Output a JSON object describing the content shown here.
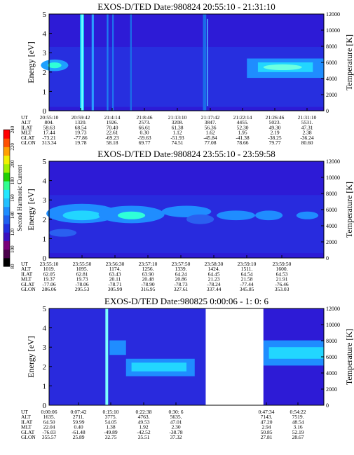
{
  "chart_data": [
    {
      "type": "heatmap",
      "title": "EXOS-D/TED   Date:980824  20:55:10 - 21:31:10",
      "ylabel": "Energy [eV]",
      "y2label": "Temperature [K]",
      "ylim": [
        0,
        5
      ],
      "y2lim": [
        0,
        12000
      ],
      "y_ticks": [
        "0",
        "1",
        "2",
        "3",
        "4",
        "5"
      ],
      "y2_ticks": [
        "0",
        "2000",
        "4000",
        "6000",
        "8000",
        "10000",
        "12000"
      ],
      "row_labels": [
        "UT",
        "ALT",
        "ILAT",
        "MLT",
        "GLAT",
        "GLON"
      ],
      "columns": [
        [
          "20:55:10",
          "804.",
          "58.63",
          "17.44",
          "-73.21",
          "313.34"
        ],
        [
          "20:59:42",
          "1320.",
          "68.54",
          "19.73",
          "-77.86",
          "19.78"
        ],
        [
          "21:4:14",
          "1926.",
          "70.40",
          "22.61",
          "-69.23",
          "58.18"
        ],
        [
          "21:8:46",
          "2573.",
          "66.61",
          "0.30",
          "-59.63",
          "69.77"
        ],
        [
          "21:13:10",
          "3208.",
          "61.38",
          "1.12",
          "-51.93",
          "74.51"
        ],
        [
          "21:17:42",
          "3847.",
          "56.36",
          "1.62",
          "-45.84",
          "77.08"
        ],
        [
          "21:22:14",
          "4455.",
          "52.30",
          "1.95",
          "-41.38",
          "78.66"
        ],
        [
          "21:26:46",
          "5023.",
          "49.30",
          "2.19",
          "-38.25",
          "79.77"
        ],
        [
          "21:31:10",
          "5531.",
          "47.31",
          "2.38",
          "-36.24",
          "80.60"
        ]
      ]
    },
    {
      "type": "heatmap",
      "title": "EXOS-D/TED   Date:980824  23:55:10 - 23:59:58",
      "ylabel": "Energy [eV]",
      "y2label": "Temperature [K]",
      "ylim": [
        0,
        5
      ],
      "y2lim": [
        0,
        12000
      ],
      "y_ticks": [
        "0",
        "1",
        "2",
        "3",
        "4",
        "5"
      ],
      "y2_ticks": [
        "0",
        "2000",
        "4000",
        "6000",
        "8000",
        "10000",
        "12000"
      ],
      "row_labels": [
        "UT",
        "ALT",
        "ILAT",
        "MLT",
        "GLAT",
        "GLON"
      ],
      "columns": [
        [
          "23:55:10",
          "1019.",
          "62.05",
          "19.37",
          "-77.06",
          "286.06"
        ],
        [
          "23:55:50",
          "1095.",
          "62.81",
          "19.73",
          "-78.06",
          "295.53"
        ],
        [
          "23:56:30",
          "1174.",
          "63.43",
          "20.11",
          "-78.71",
          "305.99"
        ],
        [
          "23:57:10",
          "1256.",
          "63.90",
          "20.48",
          "-78.90",
          "316.95"
        ],
        [
          "23:57:50",
          "1339.",
          "64.24",
          "20.86",
          "-78.73",
          "327.61"
        ],
        [
          "23:58:30",
          "1424.",
          "64.45",
          "21.23",
          "-78.24",
          "337.44"
        ],
        [
          "23:59:10",
          "1511.",
          "64.54",
          "21.58",
          "-77.44",
          "345.85"
        ],
        [
          "23:59:50",
          "1600.",
          "64.53",
          "21.91",
          "-76.46",
          "353.03"
        ]
      ]
    },
    {
      "type": "heatmap",
      "title": "EXOS-D/TED   Date:980825   0:00:06 - 1: 0: 6",
      "ylabel": "Energy [eV]",
      "y2label": "Temperature [K]",
      "ylim": [
        0,
        5
      ],
      "y2lim": [
        0,
        12000
      ],
      "y_ticks": [
        "0",
        "1",
        "2",
        "3",
        "4",
        "5"
      ],
      "y2_ticks": [
        "0",
        "2000",
        "4000",
        "6000",
        "8000",
        "10000",
        "12000"
      ],
      "row_labels": [
        "UT",
        "ALT",
        "ILAT",
        "MLT",
        "GLAT",
        "GLON"
      ],
      "columns": [
        [
          "0:00:06",
          "1635.",
          "64.50",
          "22.04",
          "-76.03",
          "355.57"
        ],
        [
          "0:07:42",
          "2711.",
          "59.99",
          "0.40",
          "-61.48",
          "25.89"
        ],
        [
          "0:15:10",
          "3775.",
          "54.05",
          "1.38",
          "-49.89",
          "32.75"
        ],
        [
          "0:22:38",
          "4763.",
          "49.53",
          "1.92",
          "-42.52",
          "35.51"
        ],
        [
          "0:30: 6",
          "5635.",
          "47.01",
          "2.30",
          "-38.78",
          "37.32"
        ],
        [
          "0:47:34",
          "7143.",
          "47.20",
          "2.94",
          "50.85",
          "27.81"
        ],
        [
          "0:54:22",
          "7519.",
          "48.54",
          "3.16",
          "52.19",
          "28.67"
        ]
      ]
    }
  ],
  "colorbar": {
    "label": "Second Harmonic Current",
    "ticks": [
      "80",
      "100",
      "120",
      "140",
      "160",
      "180",
      "200",
      "220",
      "240"
    ]
  }
}
